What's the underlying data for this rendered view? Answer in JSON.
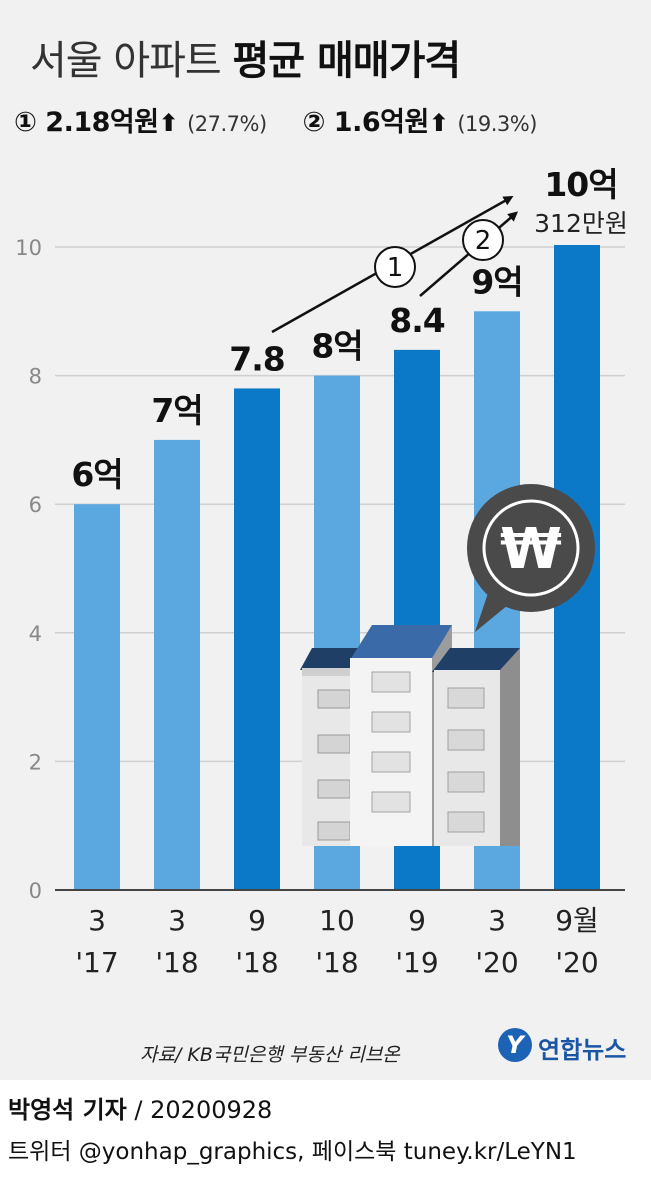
{
  "title": {
    "light": "서울 아파트",
    "bold": "평균 매매가격"
  },
  "changes": [
    {
      "marker": "①",
      "amount": "2.18억원",
      "arrow": "⬆",
      "pct": "(27.7%)"
    },
    {
      "marker": "②",
      "amount": "1.6억원",
      "arrow": "⬆",
      "pct": "(19.3%)"
    }
  ],
  "chart_data": {
    "type": "bar",
    "categories": [
      {
        "top": "3",
        "bottom": "'17"
      },
      {
        "top": "3",
        "bottom": "'18"
      },
      {
        "top": "9",
        "bottom": "'18"
      },
      {
        "top": "10",
        "bottom": "'18"
      },
      {
        "top": "9",
        "bottom": "'19"
      },
      {
        "top": "3",
        "bottom": "'20"
      },
      {
        "top": "9월",
        "bottom": "'20"
      }
    ],
    "values": [
      6,
      7,
      7.8,
      8,
      8.4,
      9,
      10.0312
    ],
    "data_labels": [
      "6억",
      "7억",
      "7.8",
      "8억",
      "8.4",
      "9억",
      "10억"
    ],
    "last_sublabel": "312만원",
    "bar_colors": [
      "#5ba7e0",
      "#5ba7e0",
      "#0b78c8",
      "#5ba7e0",
      "#0b78c8",
      "#5ba7e0",
      "#0b78c8"
    ],
    "ylim": [
      0,
      11
    ],
    "yticks": [
      0,
      2,
      4,
      6,
      8,
      10
    ],
    "grid": true,
    "annotations": [
      {
        "label": "①",
        "from_index": 2,
        "to_index": 6
      },
      {
        "label": "②",
        "from_index": 4,
        "to_index": 6
      }
    ],
    "illustration": {
      "badge_symbol": "₩",
      "subject": "apartment-buildings"
    }
  },
  "source": "자료/ KB국민은행 부동산 리브온",
  "logo": {
    "mark": "Y",
    "name": "연합뉴스"
  },
  "footer": {
    "reporter": "박영석 기자",
    "slash": "/",
    "date": "20200928",
    "social": "트위터 @yonhap_graphics, 페이스북 tuney.kr/LeYN1"
  }
}
